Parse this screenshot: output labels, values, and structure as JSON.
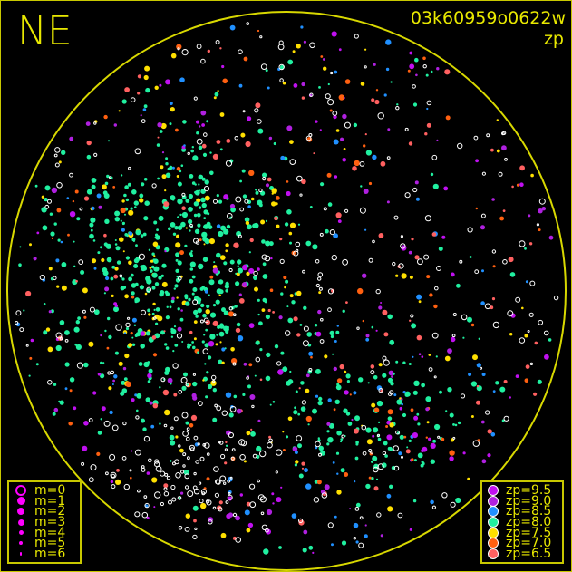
{
  "direction": "NE",
  "image_id": "03k60959o0622w",
  "mode": "zp",
  "horizon_color": "#d8d800",
  "magnitude_legend": {
    "symbol_color": "#ff00ff",
    "items": [
      {
        "label": "m=0",
        "style": "open-ring"
      },
      {
        "label": "m=1",
        "style": "filled"
      },
      {
        "label": "m=2",
        "style": "filled"
      },
      {
        "label": "m=3",
        "style": "filled"
      },
      {
        "label": "m=4",
        "style": "filled"
      },
      {
        "label": "m=5",
        "style": "filled"
      },
      {
        "label": "m=6",
        "style": "filled"
      }
    ]
  },
  "zp_legend": {
    "items": [
      {
        "label": "zp=9.5",
        "color": "#c010f0"
      },
      {
        "label": "zp=9.0",
        "color": "#b020e0"
      },
      {
        "label": "zp=8.5",
        "color": "#2090ff"
      },
      {
        "label": "zp=8.0",
        "color": "#20f0a0"
      },
      {
        "label": "zp=7.5",
        "color": "#ffe000"
      },
      {
        "label": "zp=7.0",
        "color": "#ff6010"
      },
      {
        "label": "zp=6.5",
        "color": "#ff6060"
      }
    ]
  },
  "unmatched_star_color": "#ffffff"
}
